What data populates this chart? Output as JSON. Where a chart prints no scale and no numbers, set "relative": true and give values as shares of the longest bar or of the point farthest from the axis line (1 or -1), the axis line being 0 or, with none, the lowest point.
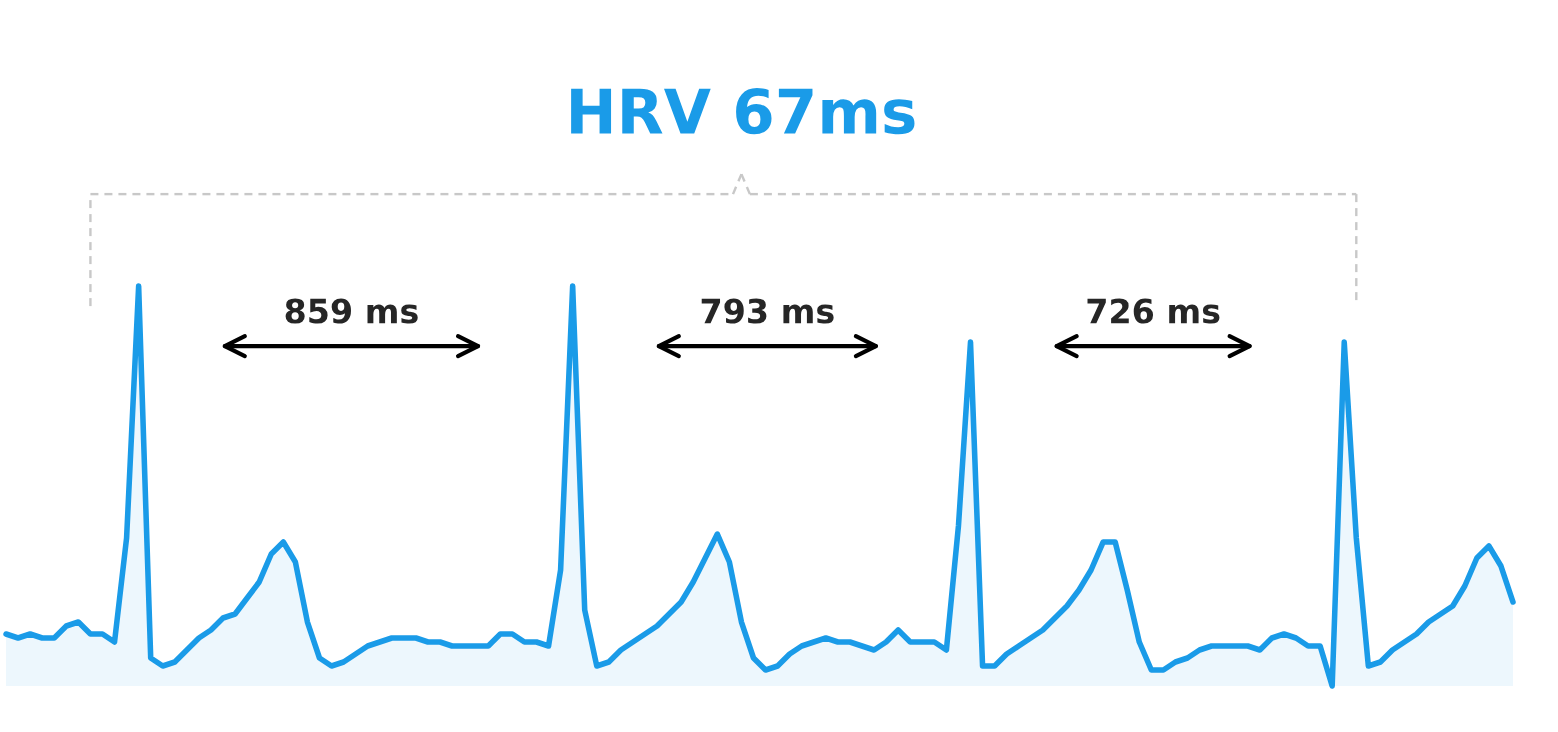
{
  "chart_data": {
    "type": "line",
    "relative": true,
    "title": "HRV 67ms",
    "categories": [
      null,
      null,
      null,
      null,
      null,
      null,
      null,
      null,
      null,
      null,
      null,
      null,
      null,
      null,
      null,
      null,
      null,
      null,
      null,
      null,
      null,
      null,
      null,
      null,
      null,
      null,
      null,
      null,
      null,
      null,
      null,
      null,
      null,
      null,
      null,
      null,
      null,
      null,
      null,
      null,
      null,
      null,
      null,
      null,
      null,
      null,
      null,
      null,
      null,
      null,
      null,
      null,
      null,
      null,
      null,
      null,
      null,
      null,
      null,
      null,
      null,
      null,
      null,
      null,
      null,
      null,
      null,
      null,
      null,
      null,
      null,
      null,
      null,
      null,
      null,
      null,
      null,
      null,
      null,
      null,
      null,
      null,
      null,
      null,
      null,
      null,
      null,
      null,
      null,
      null,
      null,
      null,
      null,
      null,
      null,
      null,
      null,
      null,
      null,
      null,
      null,
      null,
      null,
      null,
      null,
      null,
      null,
      null,
      null,
      null,
      null,
      null,
      null,
      null,
      null,
      null,
      null,
      null,
      null,
      null,
      null,
      null,
      null,
      null,
      null,
      null
    ],
    "series": [
      {
        "color": "#1a9be8",
        "values": [
          0.13,
          0.12,
          0.13,
          0.12,
          0.12,
          0.15,
          0.16,
          0.13,
          0.13,
          0.11,
          0.37,
          1.0,
          0.07,
          0.05,
          0.06,
          0.09,
          0.12,
          0.14,
          0.17,
          0.18,
          0.22,
          0.26,
          0.33,
          0.36,
          0.31,
          0.16,
          0.07,
          0.05,
          0.06,
          0.08,
          0.1,
          0.11,
          0.12,
          0.12,
          0.12,
          0.11,
          0.11,
          0.1,
          0.1,
          0.1,
          0.1,
          0.13,
          0.13,
          0.11,
          0.11,
          0.1,
          0.29,
          1.0,
          0.19,
          0.05,
          0.06,
          0.09,
          0.11,
          0.13,
          0.15,
          0.18,
          0.21,
          0.26,
          0.32,
          0.38,
          0.31,
          0.16,
          0.07,
          0.04,
          0.05,
          0.08,
          0.1,
          0.11,
          0.12,
          0.11,
          0.11,
          0.1,
          0.09,
          0.11,
          0.14,
          0.11,
          0.11,
          0.11,
          0.09,
          0.4,
          0.86,
          0.05,
          0.05,
          0.08,
          0.1,
          0.12,
          0.14,
          0.17,
          0.2,
          0.24,
          0.29,
          0.36,
          0.36,
          0.24,
          0.11,
          0.04,
          0.04,
          0.06,
          0.07,
          0.09,
          0.1,
          0.1,
          0.1,
          0.1,
          0.09,
          0.12,
          0.13,
          0.12,
          0.1,
          0.1,
          0.0,
          0.86,
          0.37,
          0.05,
          0.06,
          0.09,
          0.11,
          0.13,
          0.16,
          0.18,
          0.2,
          0.25,
          0.32,
          0.35,
          0.3,
          0.21
        ]
      }
    ],
    "annotations": [
      "859 ms",
      "793 ms",
      "726 ms"
    ]
  }
}
